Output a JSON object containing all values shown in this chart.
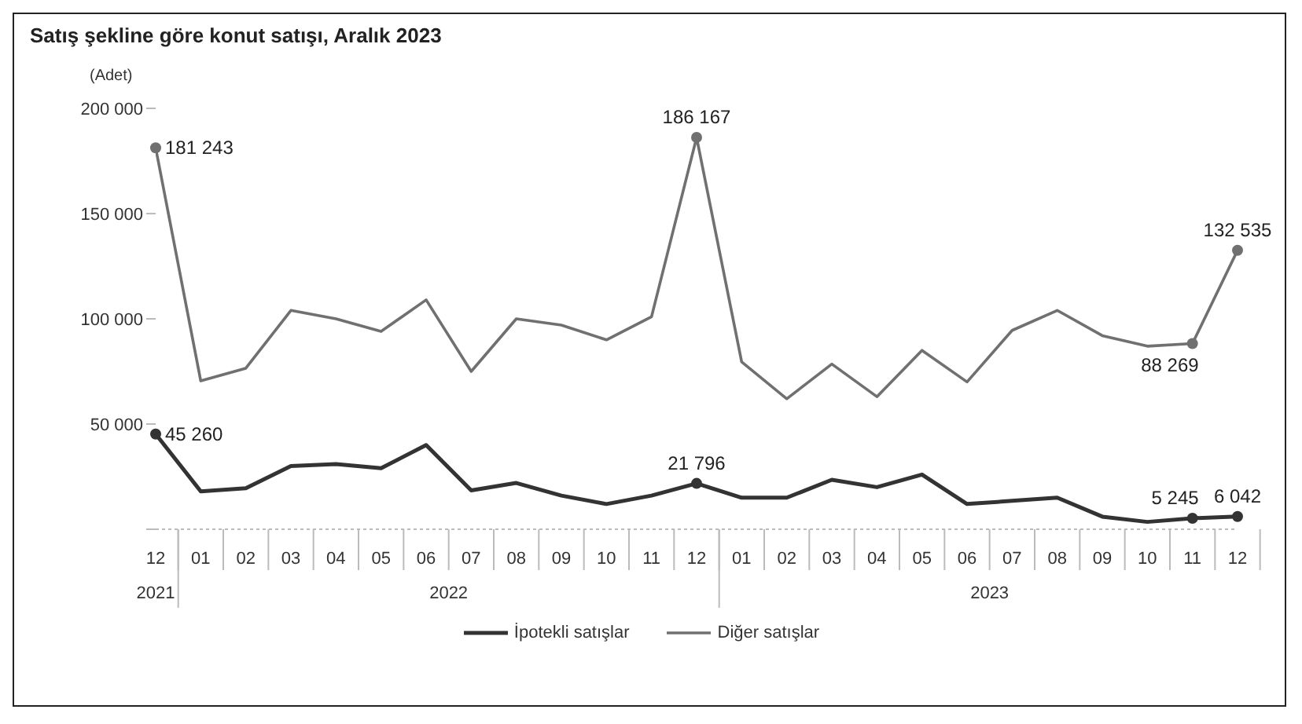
{
  "chart_data": {
    "type": "line",
    "title": "Satış şekline göre konut satışı, Aralık 2023",
    "ylabel": "(Adet)",
    "x": [
      "2021-12",
      "2022-01",
      "2022-02",
      "2022-03",
      "2022-04",
      "2022-05",
      "2022-06",
      "2022-07",
      "2022-08",
      "2022-09",
      "2022-10",
      "2022-11",
      "2022-12",
      "2023-01",
      "2023-02",
      "2023-03",
      "2023-04",
      "2023-05",
      "2023-06",
      "2023-07",
      "2023-08",
      "2023-09",
      "2023-10",
      "2023-11",
      "2023-12"
    ],
    "xlim": [
      "2021-12",
      "2023-12"
    ],
    "xticks": [
      {
        "value": "2021-12",
        "label": "12"
      },
      {
        "value": "2022-01",
        "label": "01"
      },
      {
        "value": "2022-02",
        "label": "02"
      },
      {
        "value": "2022-03",
        "label": "03"
      },
      {
        "value": "2022-04",
        "label": "04"
      },
      {
        "value": "2022-05",
        "label": "05"
      },
      {
        "value": "2022-06",
        "label": "06"
      },
      {
        "value": "2022-07",
        "label": "07"
      },
      {
        "value": "2022-08",
        "label": "08"
      },
      {
        "value": "2022-09",
        "label": "09"
      },
      {
        "value": "2022-10",
        "label": "10"
      },
      {
        "value": "2022-11",
        "label": "11"
      },
      {
        "value": "2022-12",
        "label": "12"
      },
      {
        "value": "2023-01",
        "label": "01"
      },
      {
        "value": "2023-02",
        "label": "02"
      },
      {
        "value": "2023-03",
        "label": "03"
      },
      {
        "value": "2023-04",
        "label": "04"
      },
      {
        "value": "2023-05",
        "label": "05"
      },
      {
        "value": "2023-06",
        "label": "06"
      },
      {
        "value": "2023-07",
        "label": "07"
      },
      {
        "value": "2023-08",
        "label": "08"
      },
      {
        "value": "2023-09",
        "label": "09"
      },
      {
        "value": "2023-10",
        "label": "10"
      },
      {
        "value": "2023-11",
        "label": "11"
      },
      {
        "value": "2023-12",
        "label": "12"
      }
    ],
    "series": [
      {
        "name": "İpotekli satışlar",
        "color": "#333333",
        "values": [
          45260,
          18000,
          19500,
          30000,
          31000,
          29000,
          40000,
          18500,
          22000,
          16000,
          12000,
          16000,
          21796,
          15000,
          15000,
          23500,
          20000,
          26000,
          12000,
          13500,
          15000,
          6000,
          3500,
          5245,
          6042
        ],
        "value_labels": [
          "45 260",
          null,
          null,
          null,
          null,
          null,
          null,
          null,
          null,
          null,
          null,
          null,
          "21 796",
          null,
          null,
          null,
          null,
          null,
          null,
          null,
          null,
          null,
          null,
          "5 245",
          "6 042"
        ]
      },
      {
        "name": "Diğer satışlar",
        "color": "#707070",
        "values": [
          181243,
          70500,
          76500,
          104000,
          100000,
          94000,
          109000,
          75000,
          100000,
          97000,
          90000,
          101000,
          186167,
          79500,
          62000,
          78500,
          63000,
          85000,
          70000,
          94500,
          104000,
          92000,
          87000,
          88269,
          132535
        ],
        "value_labels": [
          "181 243",
          null,
          null,
          null,
          null,
          null,
          null,
          null,
          null,
          null,
          null,
          null,
          "186 167",
          null,
          null,
          null,
          null,
          null,
          null,
          null,
          null,
          null,
          null,
          "88 269",
          "132 535"
        ]
      }
    ],
    "ylim": [
      0,
      200000
    ],
    "yticks": [
      {
        "value": 0,
        "label": null
      },
      {
        "value": 50000,
        "label": "50 000"
      },
      {
        "value": 100000,
        "label": "100 000"
      },
      {
        "value": 150000,
        "label": "150 000"
      },
      {
        "value": 200000,
        "label": "200 000"
      }
    ],
    "annotations": [
      "2021",
      "2022",
      "2023"
    ],
    "grid": false,
    "legend": "bottom",
    "marker": "none",
    "line_style": "solid"
  }
}
